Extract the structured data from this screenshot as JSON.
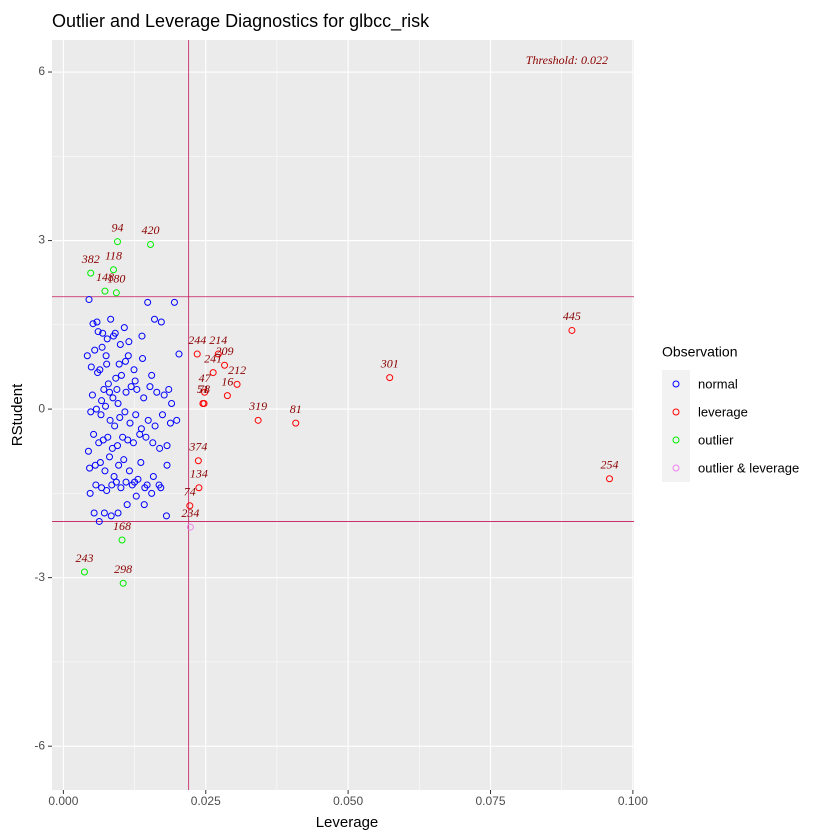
{
  "chart_data": {
    "type": "scatter",
    "title": "Outlier and Leverage Diagnostics for glbcc_risk",
    "x_label": "Leverage",
    "y_label": "RStudent",
    "annotation": "Threshold: 0.022",
    "annotation_color": "#8b0000",
    "label_color": "#8b0000",
    "legend_title": "Observation",
    "legend_position": "right",
    "grid": true,
    "xlim": [
      -0.002,
      0.1002
    ],
    "ylim": [
      -6.78,
      6.57
    ],
    "xticks": [
      {
        "value": 0,
        "label": "0.000"
      },
      {
        "value": 0.025,
        "label": "0.025"
      },
      {
        "value": 0.05,
        "label": "0.050"
      },
      {
        "value": 0.075,
        "label": "0.075"
      },
      {
        "value": 0.1,
        "label": "0.100"
      }
    ],
    "yticks": [
      -6,
      -3,
      0,
      3,
      6
    ],
    "vlines": [
      0.022
    ],
    "hlines": [
      -2,
      2
    ],
    "reference_color": "#c2185b",
    "series": [
      {
        "name": "normal",
        "color": "#0000ff",
        "x": [
          0.0045,
          0.0052,
          0.0061,
          0.0068,
          0.0075,
          0.0083,
          0.0091,
          0.0098,
          0.0107,
          0.0115,
          0.0126,
          0.0138,
          0.0148,
          0.016,
          0.0172,
          0.0185,
          0.0195,
          0.0203,
          0.0042,
          0.0055,
          0.0064,
          0.0071,
          0.0079,
          0.0087,
          0.0094,
          0.0102,
          0.011,
          0.0119,
          0.0129,
          0.0141,
          0.0152,
          0.0164,
          0.0177,
          0.019,
          0.0048,
          0.0058,
          0.0066,
          0.0074,
          0.0082,
          0.009,
          0.0099,
          0.0108,
          0.0117,
          0.0127,
          0.0137,
          0.0149,
          0.0161,
          0.0174,
          0.0188,
          0.0199,
          0.0044,
          0.0053,
          0.0062,
          0.007,
          0.0078,
          0.0086,
          0.0095,
          0.0104,
          0.0113,
          0.0123,
          0.0134,
          0.0145,
          0.0157,
          0.0169,
          0.0182,
          0.0046,
          0.0056,
          0.0065,
          0.0073,
          0.0081,
          0.0089,
          0.0097,
          0.0106,
          0.0116,
          0.0125,
          0.0136,
          0.0147,
          0.0158,
          0.0171,
          0.0182,
          0.0047,
          0.0057,
          0.0067,
          0.0076,
          0.0085,
          0.0093,
          0.0101,
          0.011,
          0.0121,
          0.0131,
          0.0143,
          0.0155,
          0.0168,
          0.0181,
          0.0054,
          0.0063,
          0.0072,
          0.0084,
          0.0096,
          0.0112,
          0.0128,
          0.0142,
          0.0059,
          0.0069,
          0.0077,
          0.0088,
          0.01,
          0.0114,
          0.0049,
          0.006,
          0.0076,
          0.0092,
          0.0109,
          0.0124,
          0.0139,
          0.0155,
          0.0051,
          0.0067,
          0.0081,
          0.0096
        ],
        "y": [
          1.95,
          1.52,
          1.38,
          1.1,
          0.95,
          1.6,
          1.35,
          0.8,
          1.45,
          1.2,
          0.5,
          1.3,
          1.9,
          1.6,
          1.55,
          0.35,
          1.9,
          0.98,
          0.95,
          1.05,
          0.7,
          0.35,
          0.45,
          0.2,
          0.35,
          0.6,
          0.3,
          0.4,
          0.35,
          0.2,
          0.4,
          0.3,
          0.25,
          0.1,
          -0.05,
          0.0,
          -0.1,
          0.05,
          -0.2,
          -0.3,
          -0.15,
          -0.05,
          -0.25,
          -0.1,
          -0.35,
          -0.2,
          -0.3,
          -0.1,
          -0.25,
          -0.2,
          -0.75,
          -0.45,
          -0.6,
          -0.55,
          -0.5,
          -0.7,
          -0.65,
          -0.5,
          -0.55,
          -0.6,
          -0.45,
          -0.5,
          -0.6,
          -0.7,
          -0.65,
          -1.05,
          -1.0,
          -0.95,
          -1.1,
          -0.85,
          -1.2,
          -1.0,
          -0.9,
          -1.1,
          -1.3,
          -0.95,
          -1.35,
          -1.2,
          -1.4,
          -1.0,
          -1.5,
          -1.35,
          -1.4,
          -1.45,
          -1.35,
          -1.3,
          -1.4,
          -1.3,
          -1.35,
          -1.25,
          -1.4,
          -1.5,
          -1.35,
          -1.9,
          -1.85,
          -2.0,
          -1.85,
          -1.9,
          -1.85,
          -1.7,
          -1.55,
          -1.7,
          1.55,
          1.35,
          1.25,
          1.3,
          1.15,
          0.95,
          0.75,
          0.65,
          0.8,
          0.55,
          0.85,
          0.7,
          0.9,
          0.6,
          0.25,
          0.15,
          0.3,
          0.1
        ]
      },
      {
        "name": "leverage",
        "color": "#ff0000",
        "x": [
          0.0893,
          0.0573,
          0.0959,
          0.0235,
          0.0272,
          0.0263,
          0.0283,
          0.0305,
          0.0288,
          0.0248,
          0.0245,
          0.0247,
          0.0342,
          0.0408,
          0.0237,
          0.0238,
          0.0222
        ],
        "y": [
          1.4,
          0.56,
          -1.24,
          0.98,
          0.98,
          0.65,
          0.78,
          0.44,
          0.24,
          0.3,
          0.1,
          0.1,
          -0.2,
          -0.25,
          -0.92,
          -1.4,
          -1.72
        ],
        "labels": [
          "445",
          "301",
          "254",
          "244",
          "214",
          "241",
          "209",
          "212",
          "16",
          "47",
          "51",
          "78",
          "319",
          "81",
          "374",
          "134",
          "74"
        ]
      },
      {
        "name": "outlier",
        "color": "#00ee00",
        "x": [
          0.0095,
          0.0153,
          0.0048,
          0.0088,
          0.0073,
          0.0093,
          0.0103,
          0.0037,
          0.0105
        ],
        "y": [
          2.98,
          2.93,
          2.42,
          2.48,
          2.1,
          2.07,
          -2.33,
          -2.9,
          -3.1
        ],
        "labels": [
          "94",
          "420",
          "382",
          "118",
          "148",
          "180",
          "168",
          "243",
          "298"
        ]
      },
      {
        "name": "outlier & leverage",
        "color": "#ee82ee",
        "x": [
          0.0223
        ],
        "y": [
          -2.1
        ],
        "labels": [
          "234"
        ]
      }
    ]
  }
}
